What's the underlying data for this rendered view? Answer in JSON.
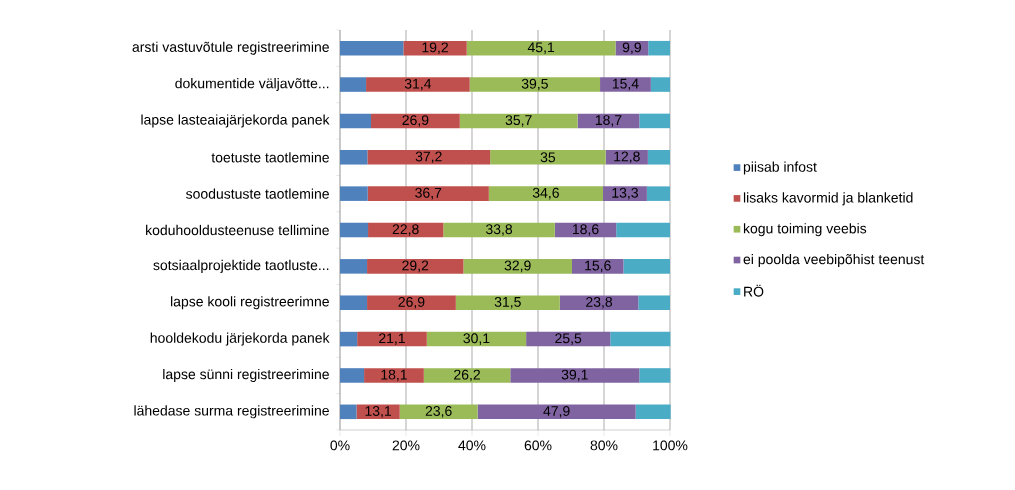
{
  "chart_data": {
    "type": "bar",
    "orientation": "horizontal",
    "stacked": true,
    "grid": "x",
    "legend": "right",
    "categories": [
      "arsti vastuvõtule registreerimine",
      "dokumentide väljavõtte...",
      "lapse lasteaiajärjekorda panek",
      "toetuste taotlemine",
      "soodustuste taotlemine",
      "koduhooldusteenuse tellimine",
      "sotsiaalprojektide taotluste...",
      "lapse kooli registreerimne",
      "hooldekodu järjekorda panek",
      "lapse sünni registreerimine",
      "lähedase surma registreerimine"
    ],
    "xlim": [
      0,
      100
    ],
    "xticks": [
      {
        "value": 0,
        "label": "0%"
      },
      {
        "value": 20,
        "label": "20%"
      },
      {
        "value": 40,
        "label": "40%"
      },
      {
        "value": 60,
        "label": "60%"
      },
      {
        "value": 80,
        "label": "80%"
      },
      {
        "value": 100,
        "label": "100%"
      }
    ],
    "series": [
      {
        "name": "piisab infost",
        "color": "#4f81bd",
        "values": [
          19.2,
          7.9,
          9.4,
          8.3,
          8.4,
          8.5,
          8.2,
          8.2,
          5.2,
          7.3,
          5.0
        ]
      },
      {
        "name": "lisaks kavormid ja blanketid",
        "color": "#c0504d",
        "values": [
          19.2,
          31.4,
          26.9,
          37.2,
          36.7,
          22.8,
          29.2,
          26.9,
          21.1,
          18.1,
          13.1
        ],
        "value_labels": [
          "19,2",
          "31,4",
          "26,9",
          "37,2",
          "36,7",
          "22,8",
          "29,2",
          "26,9",
          "21,1",
          "18,1",
          "13,1"
        ]
      },
      {
        "name": "kogu toiming veebis",
        "color": "#9bbb59",
        "values": [
          45.1,
          39.5,
          35.7,
          35,
          34.6,
          33.8,
          32.9,
          31.5,
          30.1,
          26.2,
          23.6
        ],
        "value_labels": [
          "45,1",
          "39,5",
          "35,7",
          "35",
          "34,6",
          "33,8",
          "32,9",
          "31,5",
          "30,1",
          "26,2",
          "23,6"
        ]
      },
      {
        "name": "ei poolda veebipõhist teenust",
        "color": "#8064a2",
        "values": [
          9.9,
          15.4,
          18.7,
          12.8,
          13.3,
          18.6,
          15.6,
          23.8,
          25.5,
          39.1,
          47.9
        ],
        "value_labels": [
          "9,9",
          "15,4",
          "18,7",
          "12,8",
          "13,3",
          "18,6",
          "15,6",
          "23,8",
          "25,5",
          "39,1",
          "47,9"
        ]
      },
      {
        "name": "RÖ",
        "color": "#4bacc6",
        "values": [
          6.6,
          5.8,
          9.3,
          6.7,
          7.0,
          16.3,
          14.1,
          9.6,
          18.2,
          9.4,
          10.6
        ]
      }
    ]
  }
}
